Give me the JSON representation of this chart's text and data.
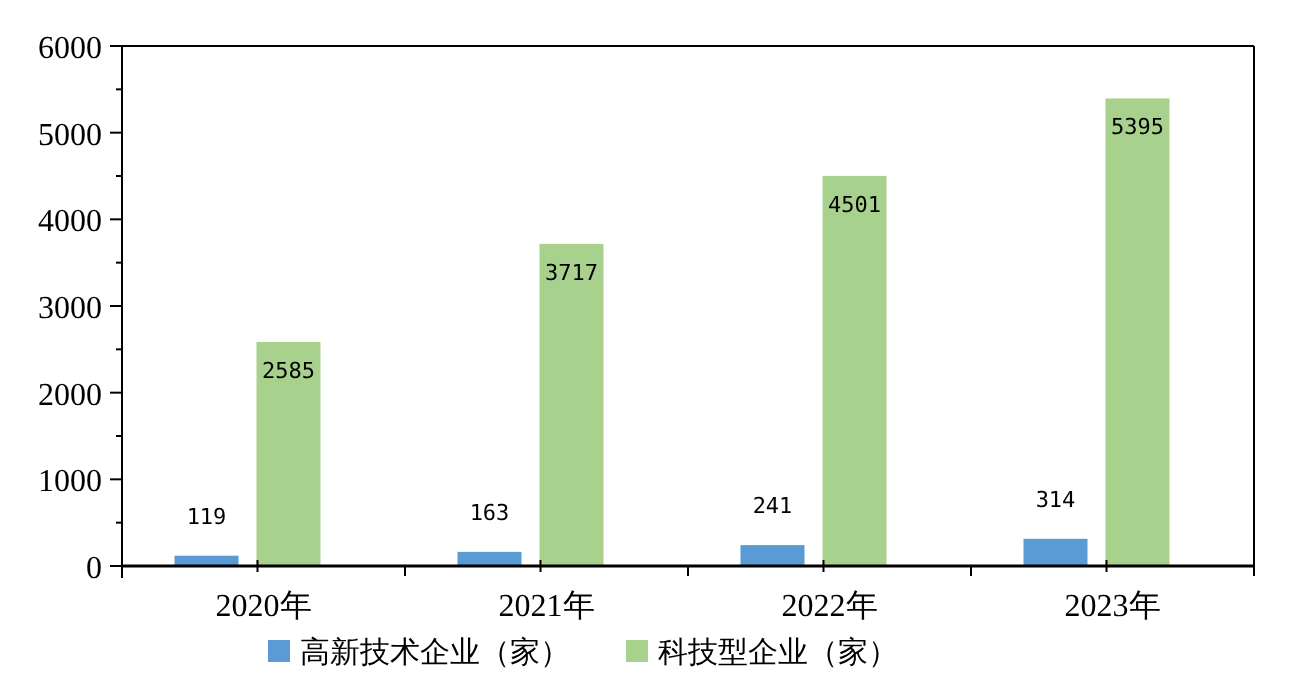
{
  "chart_data": {
    "type": "bar",
    "categories": [
      "2020年",
      "2021年",
      "2022年",
      "2023年"
    ],
    "series": [
      {
        "name": "高新技术企业（家）",
        "color": "#5b9bd5",
        "values": [
          119,
          163,
          241,
          314
        ]
      },
      {
        "name": "科技型企业（家）",
        "color": "#a9d18e",
        "values": [
          2585,
          3717,
          4501,
          5395
        ]
      }
    ],
    "ylim": [
      0,
      6000
    ],
    "yticks": [
      0,
      {
        "value": 500,
        "label": null
      },
      1000,
      {
        "value": 1500,
        "label": null
      },
      2000,
      {
        "value": 2500,
        "label": null
      },
      3000,
      {
        "value": 3500,
        "label": null
      },
      4000,
      {
        "value": 4500,
        "label": null
      },
      5000,
      {
        "value": 5500,
        "label": null
      },
      6000
    ],
    "data_labels": true,
    "legend": "bottom",
    "grid": false
  }
}
